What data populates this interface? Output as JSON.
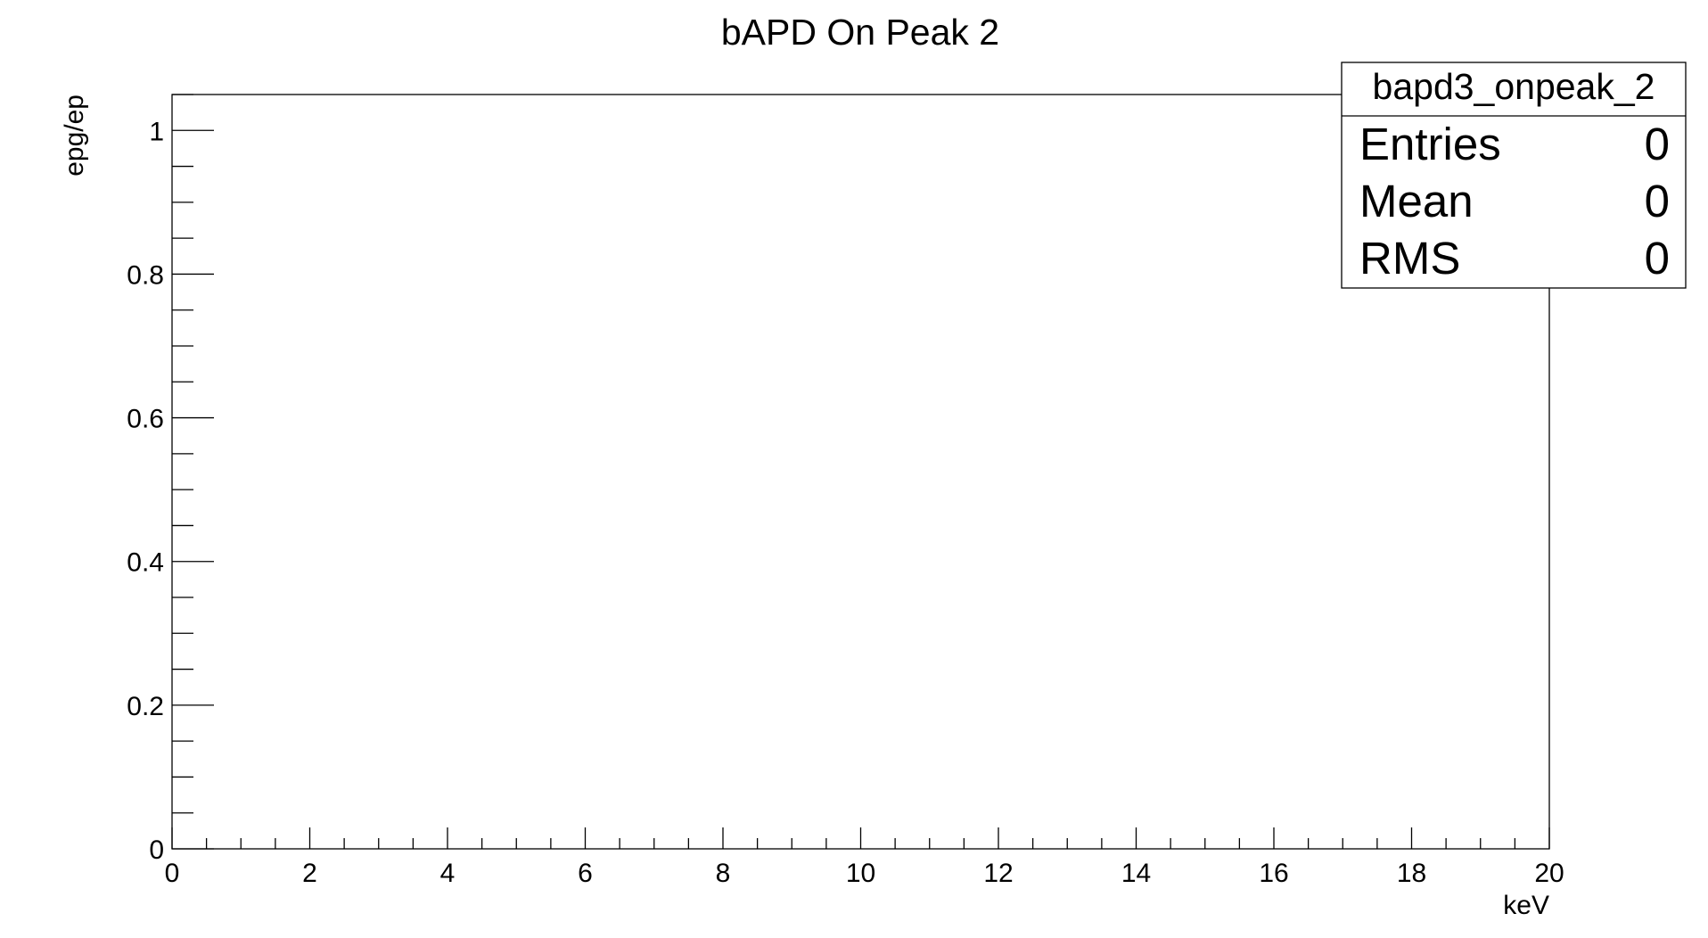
{
  "chart_data": {
    "type": "bar",
    "title": "bAPD On Peak 2",
    "xlabel": "keV",
    "ylabel": "epg/ep",
    "xlim": [
      0,
      20
    ],
    "ylim": [
      0,
      1.05
    ],
    "x_major_ticks": [
      0,
      2,
      4,
      6,
      8,
      10,
      12,
      14,
      16,
      18,
      20
    ],
    "x_tick_labels": [
      "0",
      "2",
      "4",
      "6",
      "8",
      "10",
      "12",
      "14",
      "16",
      "18",
      "20"
    ],
    "y_major_ticks": [
      0,
      0.2,
      0.4,
      0.6,
      0.8,
      1
    ],
    "y_tick_labels": [
      "0",
      "0.2",
      "0.4",
      "0.6",
      "0.8",
      "1"
    ],
    "x_minor_per_major": 4,
    "y_minor_per_major": 4,
    "series": [],
    "grid": false,
    "stats_box": {
      "name": "bapd3_onpeak_2",
      "rows": [
        {
          "label": "Entries",
          "value": "0"
        },
        {
          "label": "Mean",
          "value": "0"
        },
        {
          "label": "RMS",
          "value": "0"
        }
      ],
      "placement": "top-right"
    }
  }
}
